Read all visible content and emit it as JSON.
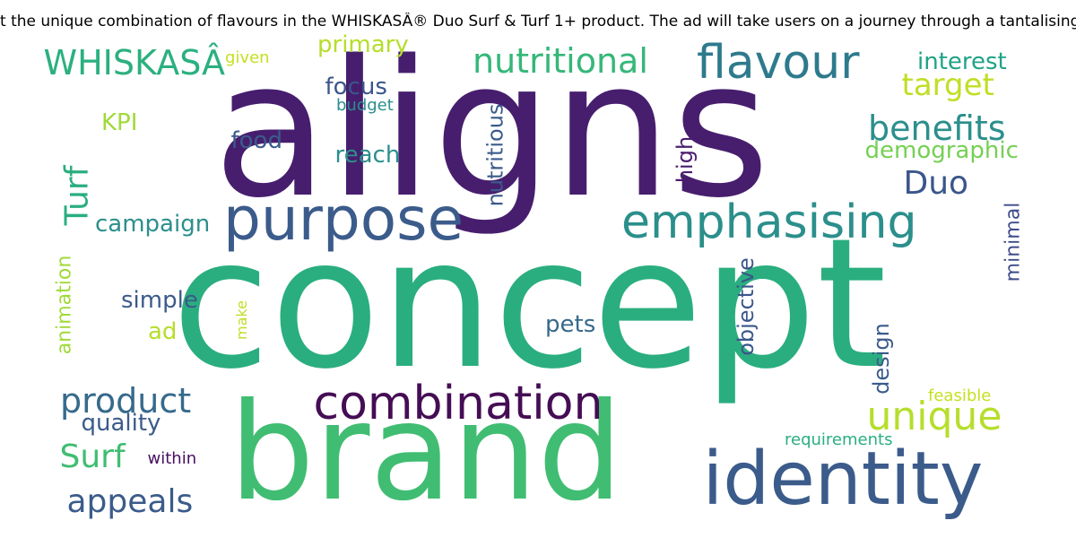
{
  "title": "t the unique combination of flavours in the WHISKASÂ® Duo Surf & Turf 1+ product. The ad will take users on a journey through a tantalising tas",
  "words": [
    {
      "text": "aligns",
      "color": "#471e6e"
    },
    {
      "text": "concept",
      "color": "#2aae7f"
    },
    {
      "text": "brand",
      "color": "#40bd72"
    },
    {
      "text": "identity",
      "color": "#3b5b8b"
    },
    {
      "text": "purpose",
      "color": "#3b5b8b"
    },
    {
      "text": "emphasising",
      "color": "#2b8f8c"
    },
    {
      "text": "combination",
      "color": "#450d54"
    },
    {
      "text": "flavour",
      "color": "#2e7a8d"
    },
    {
      "text": "nutritional",
      "color": "#35b779"
    },
    {
      "text": "unique",
      "color": "#b6de2b"
    },
    {
      "text": "WHISKASÂ",
      "color": "#2bb07f"
    },
    {
      "text": "product",
      "color": "#366a8c"
    },
    {
      "text": "benefits",
      "color": "#2b8f8c"
    },
    {
      "text": "target",
      "color": "#c0df25"
    },
    {
      "text": "appeals",
      "color": "#3b5b8b"
    },
    {
      "text": "Surf",
      "color": "#40bd72"
    },
    {
      "text": "Duo",
      "color": "#3a568b"
    },
    {
      "text": "Turf",
      "color": "#2aae7f"
    },
    {
      "text": "campaign",
      "color": "#2b8f8c"
    },
    {
      "text": "demographic",
      "color": "#75d054"
    },
    {
      "text": "interest",
      "color": "#20a386"
    },
    {
      "text": "primary",
      "color": "#b5de2b"
    },
    {
      "text": "focus",
      "color": "#3a568b"
    },
    {
      "text": "food",
      "color": "#3b5b8b"
    },
    {
      "text": "reach",
      "color": "#2b8f8c"
    },
    {
      "text": "simple",
      "color": "#3b5b8b"
    },
    {
      "text": "quality",
      "color": "#3b5b8b"
    },
    {
      "text": "pets",
      "color": "#366a8c"
    },
    {
      "text": "nutritious",
      "color": "#3b5b8b"
    },
    {
      "text": "high",
      "color": "#4a1c6e"
    },
    {
      "text": "objective",
      "color": "#3a568b"
    },
    {
      "text": "animation",
      "color": "#a0da39"
    },
    {
      "text": "design",
      "color": "#3b5b8b"
    },
    {
      "text": "minimal",
      "color": "#3e4c8a"
    },
    {
      "text": "ad",
      "color": "#b5de2b"
    },
    {
      "text": "KPI",
      "color": "#a0da39"
    },
    {
      "text": "budget",
      "color": "#2b8f8c"
    },
    {
      "text": "given",
      "color": "#c5e021"
    },
    {
      "text": "within",
      "color": "#471063"
    },
    {
      "text": "feasible",
      "color": "#c5e021"
    },
    {
      "text": "requirements",
      "color": "#2aae7f"
    },
    {
      "text": "make",
      "color": "#bddf26"
    }
  ]
}
